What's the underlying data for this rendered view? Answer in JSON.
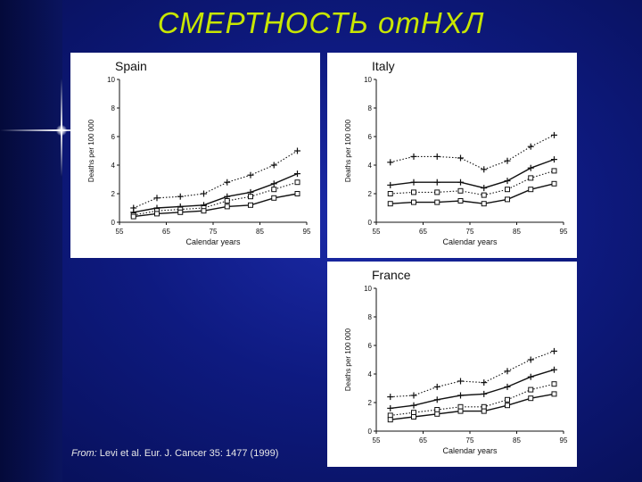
{
  "slide": {
    "title": "СМЕРТНОСТЬ отНХЛ",
    "source_prefix": "From:",
    "source_text": " Levi et al. Eur. J. Cancer 35: 1477 (1999)"
  },
  "colors": {
    "background": "#0e1a80",
    "title": "#c8e600",
    "panel": "#ffffff",
    "ink": "#111111"
  },
  "chart_data": [
    {
      "type": "line",
      "title": "Spain",
      "xlabel": "Calendar years",
      "ylabel": "Deaths per 100 000",
      "xlim": [
        55,
        95
      ],
      "ylim": [
        0,
        10
      ],
      "x_ticks": [
        55,
        65,
        75,
        85,
        95
      ],
      "y_ticks": [
        0,
        2,
        4,
        6,
        8,
        10
      ],
      "grid": false,
      "series": [
        {
          "marker": "plus",
          "dash": "dotted",
          "x": [
            58,
            63,
            68,
            73,
            78,
            83,
            88,
            93
          ],
          "y": [
            1.0,
            1.7,
            1.8,
            2.0,
            2.8,
            3.3,
            4.0,
            5.0
          ]
        },
        {
          "marker": "plus",
          "dash": "solid",
          "x": [
            58,
            63,
            68,
            73,
            78,
            83,
            88,
            93
          ],
          "y": [
            0.7,
            1.0,
            1.1,
            1.2,
            1.8,
            2.1,
            2.7,
            3.4
          ]
        },
        {
          "marker": "square",
          "dash": "dotted",
          "x": [
            58,
            63,
            68,
            73,
            78,
            83,
            88,
            93
          ],
          "y": [
            0.5,
            0.8,
            0.9,
            1.0,
            1.5,
            1.8,
            2.3,
            2.8
          ]
        },
        {
          "marker": "square",
          "dash": "solid",
          "x": [
            58,
            63,
            68,
            73,
            78,
            83,
            88,
            93
          ],
          "y": [
            0.4,
            0.6,
            0.7,
            0.8,
            1.1,
            1.2,
            1.7,
            2.0
          ]
        }
      ]
    },
    {
      "type": "line",
      "title": "Italy",
      "xlabel": "Calendar years",
      "ylabel": "Deaths per 100 000",
      "xlim": [
        55,
        95
      ],
      "ylim": [
        0,
        10
      ],
      "x_ticks": [
        55,
        65,
        75,
        85,
        95
      ],
      "y_ticks": [
        0,
        2,
        4,
        6,
        8,
        10
      ],
      "grid": false,
      "series": [
        {
          "marker": "plus",
          "dash": "dotted",
          "x": [
            58,
            63,
            68,
            73,
            78,
            83,
            88,
            93
          ],
          "y": [
            4.2,
            4.6,
            4.6,
            4.5,
            3.7,
            4.3,
            5.3,
            6.1
          ]
        },
        {
          "marker": "plus",
          "dash": "solid",
          "x": [
            58,
            63,
            68,
            73,
            78,
            83,
            88,
            93
          ],
          "y": [
            2.6,
            2.8,
            2.8,
            2.8,
            2.4,
            2.9,
            3.8,
            4.4
          ]
        },
        {
          "marker": "square",
          "dash": "dotted",
          "x": [
            58,
            63,
            68,
            73,
            78,
            83,
            88,
            93
          ],
          "y": [
            2.0,
            2.1,
            2.1,
            2.2,
            1.9,
            2.3,
            3.1,
            3.6
          ]
        },
        {
          "marker": "square",
          "dash": "solid",
          "x": [
            58,
            63,
            68,
            73,
            78,
            83,
            88,
            93
          ],
          "y": [
            1.3,
            1.4,
            1.4,
            1.5,
            1.3,
            1.6,
            2.3,
            2.7
          ]
        }
      ]
    },
    {
      "type": "line",
      "title": "France",
      "xlabel": "Calendar years",
      "ylabel": "Deaths per 100 000",
      "xlim": [
        55,
        95
      ],
      "ylim": [
        0,
        10
      ],
      "x_ticks": [
        55,
        65,
        75,
        85,
        95
      ],
      "y_ticks": [
        0,
        2,
        4,
        6,
        8,
        10
      ],
      "grid": false,
      "series": [
        {
          "marker": "plus",
          "dash": "dotted",
          "x": [
            58,
            63,
            68,
            73,
            78,
            83,
            88,
            93
          ],
          "y": [
            2.4,
            2.5,
            3.1,
            3.5,
            3.4,
            4.2,
            5.0,
            5.6
          ]
        },
        {
          "marker": "plus",
          "dash": "solid",
          "x": [
            58,
            63,
            68,
            73,
            78,
            83,
            88,
            93
          ],
          "y": [
            1.6,
            1.8,
            2.2,
            2.5,
            2.6,
            3.1,
            3.8,
            4.3
          ]
        },
        {
          "marker": "square",
          "dash": "dotted",
          "x": [
            58,
            63,
            68,
            73,
            78,
            83,
            88,
            93
          ],
          "y": [
            1.1,
            1.3,
            1.5,
            1.7,
            1.7,
            2.2,
            2.9,
            3.3
          ]
        },
        {
          "marker": "square",
          "dash": "solid",
          "x": [
            58,
            63,
            68,
            73,
            78,
            83,
            88,
            93
          ],
          "y": [
            0.8,
            1.0,
            1.2,
            1.4,
            1.4,
            1.8,
            2.3,
            2.6
          ]
        }
      ]
    }
  ]
}
